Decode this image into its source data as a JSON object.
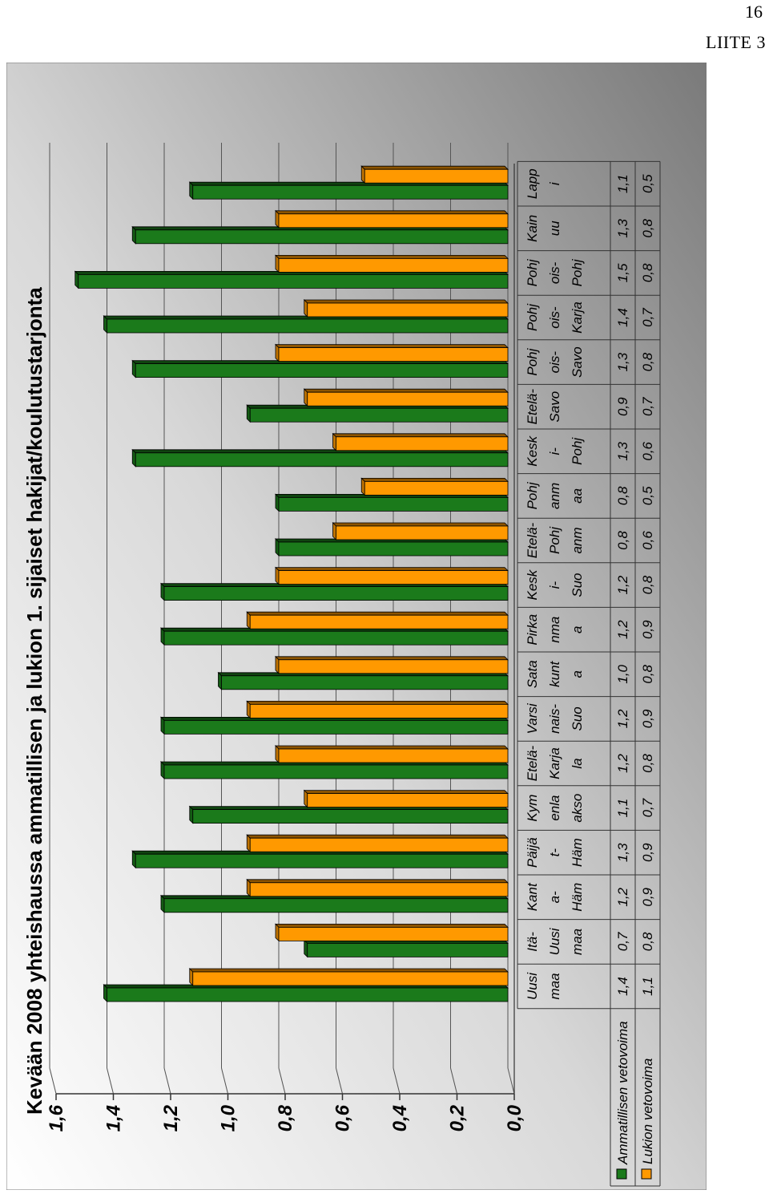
{
  "page": {
    "number": "16",
    "appendix": "LIITE 3"
  },
  "chart_data": {
    "type": "bar",
    "orientation": "horizontal-bars",
    "title": "Kevään 2008 yhteishaussa ammatillisen ja lukion 1. sijaiset hakijat/koulutustarjonta",
    "ylim": [
      0,
      1.6
    ],
    "ticks": [
      "0,0",
      "0,2",
      "0,4",
      "0,6",
      "0,8",
      "1,0",
      "1,2",
      "1,4",
      "1,6"
    ],
    "tick_values": [
      0,
      0.2,
      0.4,
      0.6,
      0.8,
      1.0,
      1.2,
      1.4,
      1.6
    ],
    "grid": true,
    "data_table": true,
    "categories": [
      [
        "Uusi",
        "maa"
      ],
      [
        "Itä-",
        "Uusi",
        "maa"
      ],
      [
        "Kant",
        "a-",
        "Häm"
      ],
      [
        "Päijä",
        "t-",
        "Häm"
      ],
      [
        "Kym",
        "enla",
        "akso"
      ],
      [
        "Etelä-",
        "Karja",
        "la"
      ],
      [
        "Varsi",
        "nais-",
        "Suo"
      ],
      [
        "Sata",
        "kunt",
        "a"
      ],
      [
        "Pirka",
        "nma",
        "a"
      ],
      [
        "Kesk",
        "i-",
        "Suo"
      ],
      [
        "Etelä-",
        "Pohj",
        "anm"
      ],
      [
        "Pohj",
        "anm",
        "aa"
      ],
      [
        "Kesk",
        "i-",
        "Pohj"
      ],
      [
        "Etelä-",
        "Savo"
      ],
      [
        "Pohj",
        "ois-",
        "Savo"
      ],
      [
        "Pohj",
        "ois-",
        "Karja"
      ],
      [
        "Pohj",
        "ois-",
        "Pohj"
      ],
      [
        "Kain",
        "uu"
      ],
      [
        "Lapp",
        "i"
      ]
    ],
    "series": [
      {
        "name": "Ammatillisen vetovoima",
        "color": "#1b7a1b",
        "values": [
          1.4,
          0.7,
          1.2,
          1.3,
          1.1,
          1.2,
          1.2,
          1.0,
          1.2,
          1.2,
          0.8,
          0.8,
          1.3,
          0.9,
          1.3,
          1.4,
          1.5,
          1.3,
          1.1
        ],
        "labels": [
          "1,4",
          "0,7",
          "1,2",
          "1,3",
          "1,1",
          "1,2",
          "1,2",
          "1,0",
          "1,2",
          "1,2",
          "0,8",
          "0,8",
          "1,3",
          "0,9",
          "1,3",
          "1,4",
          "1,5",
          "1,3",
          "1,1"
        ]
      },
      {
        "name": "Lukion vetovoima",
        "color": "#ff9900",
        "values": [
          1.1,
          0.8,
          0.9,
          0.9,
          0.7,
          0.8,
          0.9,
          0.8,
          0.9,
          0.8,
          0.6,
          0.5,
          0.6,
          0.7,
          0.8,
          0.7,
          0.8,
          0.8,
          0.5
        ],
        "labels": [
          "1,1",
          "0,8",
          "0,9",
          "0,9",
          "0,7",
          "0,8",
          "0,9",
          "0,8",
          "0,9",
          "0,8",
          "0,6",
          "0,5",
          "0,6",
          "0,7",
          "0,8",
          "0,7",
          "0,8",
          "0,8",
          "0,5"
        ]
      }
    ]
  }
}
